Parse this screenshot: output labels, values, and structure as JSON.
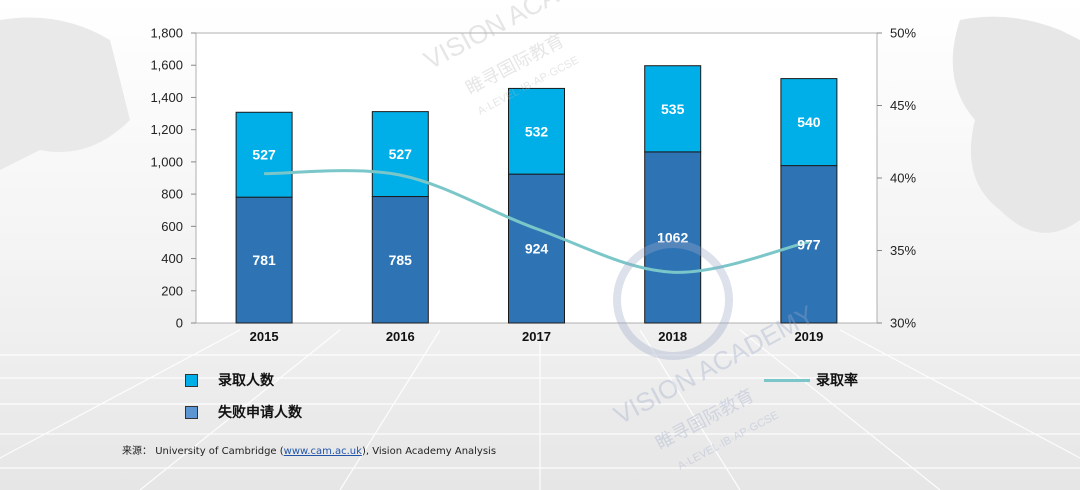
{
  "chart_data": {
    "type": "bar",
    "stacked": true,
    "categories": [
      "2015",
      "2016",
      "2017",
      "2018",
      "2019"
    ],
    "series": [
      {
        "name": "失败申请人数",
        "values": [
          781,
          785,
          924,
          1062,
          977
        ],
        "color": "#2e74b5"
      },
      {
        "name": "录取人数",
        "values": [
          527,
          527,
          532,
          535,
          540
        ],
        "color": "#00aee8"
      }
    ],
    "line_series": {
      "name": "录取率",
      "values": [
        40.3,
        40.2,
        36.5,
        33.5,
        35.6
      ],
      "color": "#7ac6c8",
      "axis": "right"
    },
    "ylim": [
      0,
      1800
    ],
    "yticks": [
      "0",
      "200",
      "400",
      "600",
      "800",
      "1,000",
      "1,200",
      "1,400",
      "1,600",
      "1,800"
    ],
    "y2lim": [
      30,
      50
    ],
    "y2ticks": [
      "30%",
      "35%",
      "40%",
      "45%",
      "50%"
    ],
    "legend": {
      "admitted": "录取人数",
      "rejected": "失败申请人数",
      "rate": "录取率"
    },
    "grid": false,
    "legend_position": "bottom"
  },
  "source": {
    "prefix": "来源：",
    "org": "University of Cambridge (",
    "link": "www.cam.ac.uk",
    "suffix": "), Vision Academy Analysis"
  },
  "watermark": {
    "text1": "VISION ACADEMY",
    "text2": "睢寻国际教育",
    "text3": "A·LEVEL·IB·AP·GCSE"
  }
}
